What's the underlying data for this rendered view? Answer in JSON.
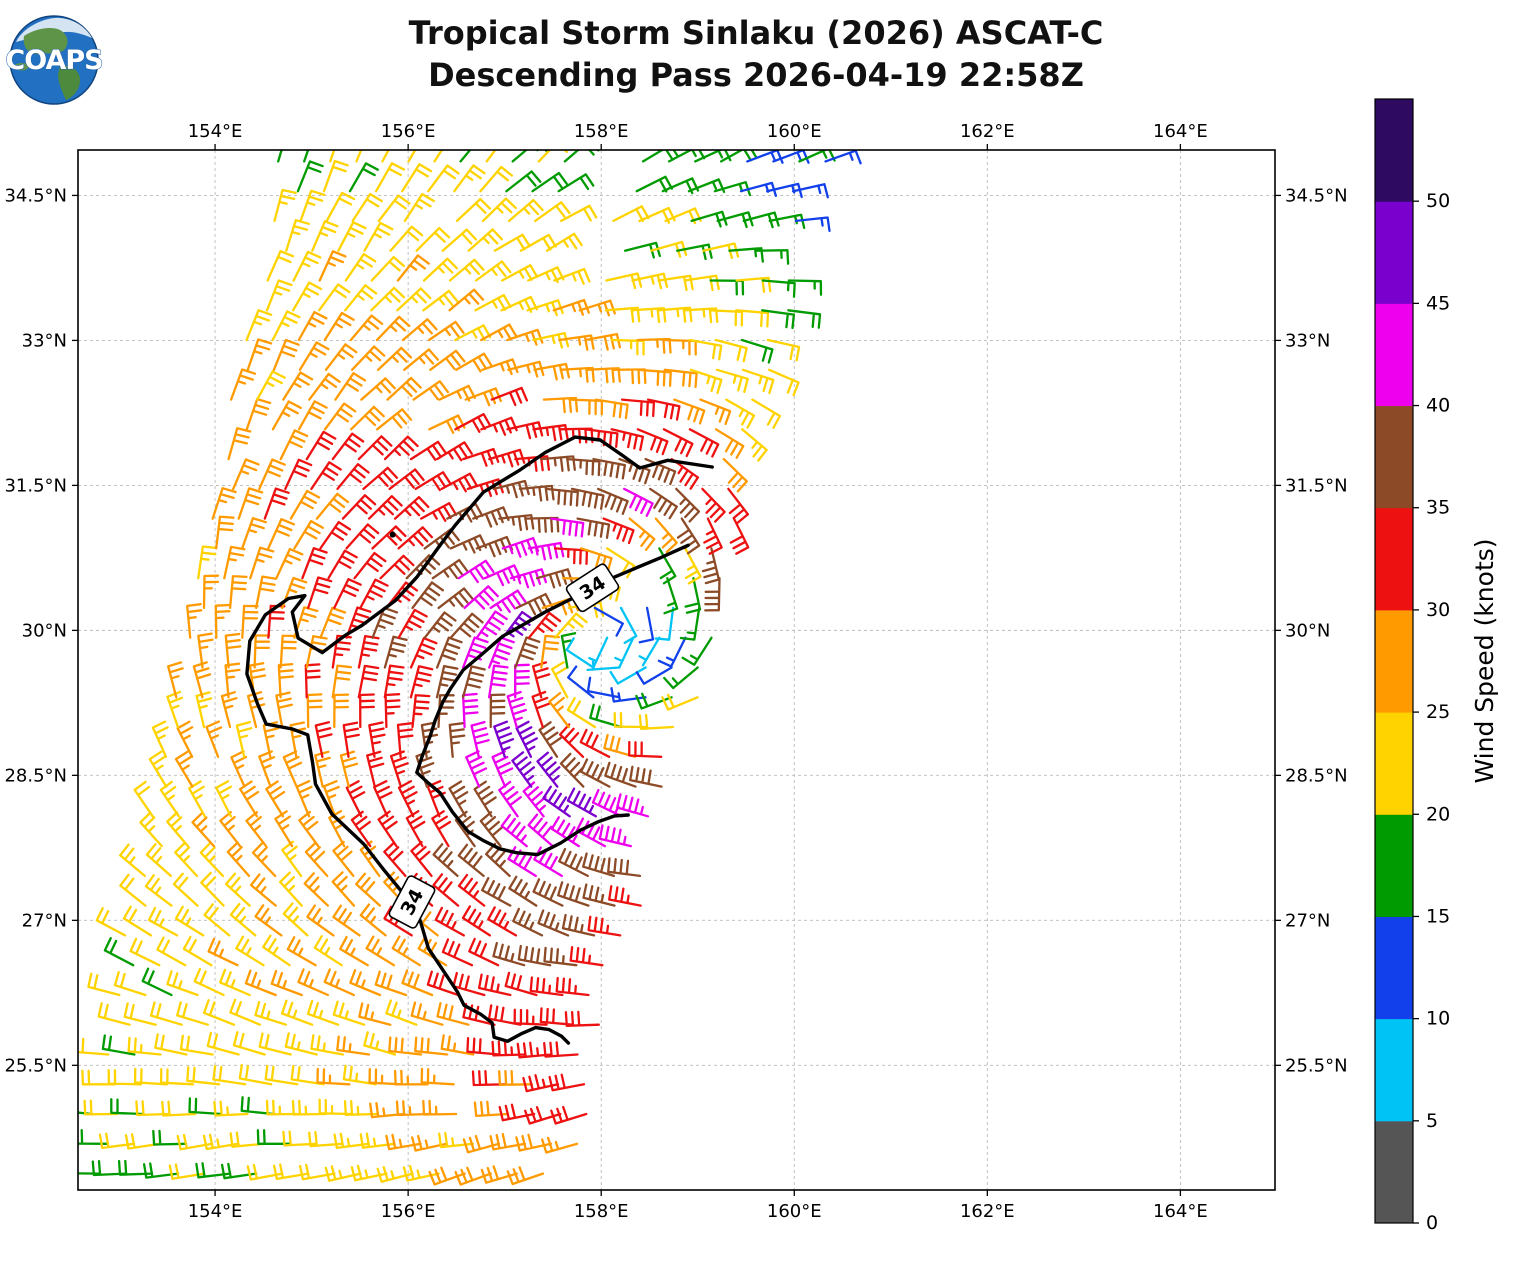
{
  "title": {
    "line1": "Tropical Storm Sinlaku (2026) ASCAT-C",
    "line2": "Descending Pass 2026-04-19 22:58Z"
  },
  "logo": {
    "text": "COAPS"
  },
  "axes": {
    "lon_range": [
      152.58,
      164.98
    ],
    "lat_range": [
      24.21,
      34.97
    ],
    "lon_ticks": [
      {
        "value": 154,
        "label": "154°E"
      },
      {
        "value": 156,
        "label": "156°E"
      },
      {
        "value": 158,
        "label": "158°E"
      },
      {
        "value": 160,
        "label": "160°E"
      },
      {
        "value": 162,
        "label": "162°E"
      },
      {
        "value": 164,
        "label": "164°E"
      }
    ],
    "lat_ticks": [
      {
        "value": 34.5,
        "label": "34.5°N"
      },
      {
        "value": 33,
        "label": "33°N"
      },
      {
        "value": 31.5,
        "label": "31.5°N"
      },
      {
        "value": 30,
        "label": "30°N"
      },
      {
        "value": 28.5,
        "label": "28.5°N"
      },
      {
        "value": 27,
        "label": "27°N"
      },
      {
        "value": 25.5,
        "label": "25.5°N"
      }
    ],
    "grid_color": "#bbbbbb"
  },
  "colorbar": {
    "label": "Wind Speed (knots)",
    "tick_values": [
      0,
      5,
      10,
      15,
      20,
      25,
      30,
      35,
      40,
      45,
      50
    ],
    "bins": [
      {
        "from": 0,
        "to": 5,
        "color": "#555555"
      },
      {
        "from": 5,
        "to": 10,
        "color": "#00C3F5"
      },
      {
        "from": 10,
        "to": 15,
        "color": "#1240EB"
      },
      {
        "from": 15,
        "to": 20,
        "color": "#009B00"
      },
      {
        "from": 20,
        "to": 25,
        "color": "#FFD300"
      },
      {
        "from": 25,
        "to": 30,
        "color": "#FF9A00"
      },
      {
        "from": 30,
        "to": 35,
        "color": "#EE1111"
      },
      {
        "from": 35,
        "to": 40,
        "color": "#8D4A26"
      },
      {
        "from": 40,
        "to": 45,
        "color": "#EE00EE"
      },
      {
        "from": 45,
        "to": 50,
        "color": "#7A00CE"
      },
      {
        "from": 50,
        "to": 55,
        "color": "#2E0A60"
      }
    ]
  },
  "chart_data": {
    "type": "wind_barb_map",
    "wind_speed_units": "knots",
    "description": "ASCAT-C scatterometer ocean surface wind barbs for Tropical Storm Sinlaku, colored by wind speed. Cyclonic (counterclockwise) circulation around a calm center near 158.1E, 29.8N with a 40-45 kt (magenta) maximum northwest of the center and a 35-40 kt (brown) band wrapping south. Black contours mark the 34-knot wind radius.",
    "wind_model": {
      "speed_center": [
        158.15,
        29.75
      ],
      "dir_center": [
        157.9,
        29.9
      ],
      "vmax_kt": 44,
      "rmax_deg": 1.2,
      "y_scale": 0.72,
      "rotation": "counterclockwise"
    },
    "swath": {
      "lon_left_at_24_8N": 152.7,
      "lon_left_slope_per_deg_lat": 0.2,
      "lon_right_at_24_5N": 157.75,
      "lon_right_slope_per_deg_lat": 0.253,
      "row_step_deg_lat": 0.308,
      "col_step_deg_lon": 0.27,
      "nadir_gap": {
        "lat_above": 33.45,
        "center_lon_at_34_6N": 157.95,
        "slope": 0.21,
        "half_width": 0.17
      },
      "data_hole": {
        "lon": 158.25,
        "lat": 30.55,
        "rx": 0.26,
        "ry": 0.32
      }
    },
    "contours": {
      "level_kt": 34,
      "label": "34",
      "color": "#000000",
      "label_positions": [
        {
          "lon": 157.91,
          "lat": 30.44,
          "rotation": -33
        },
        {
          "lon": 156.04,
          "lat": 27.19,
          "rotation": -62
        }
      ],
      "paths": [
        [
          [
            159.15,
            31.69
          ],
          [
            158.69,
            31.76
          ],
          [
            158.4,
            31.68
          ],
          [
            158.22,
            31.81
          ],
          [
            157.99,
            31.97
          ],
          [
            157.73,
            32.0
          ],
          [
            157.42,
            31.84
          ],
          [
            157.16,
            31.66
          ],
          [
            156.78,
            31.43
          ],
          [
            156.49,
            31.09
          ],
          [
            156.33,
            30.88
          ],
          [
            156.09,
            30.55
          ],
          [
            155.87,
            30.31
          ],
          [
            155.52,
            30.05
          ],
          [
            155.35,
            29.95
          ],
          [
            155.11,
            29.77
          ],
          [
            154.86,
            29.92
          ],
          [
            154.8,
            30.19
          ],
          [
            154.93,
            30.36
          ],
          [
            154.76,
            30.33
          ],
          [
            154.52,
            30.16
          ],
          [
            154.36,
            29.89
          ],
          [
            154.33,
            29.55
          ],
          [
            154.44,
            29.24
          ],
          [
            154.53,
            29.03
          ],
          [
            154.8,
            28.98
          ],
          [
            154.96,
            28.92
          ],
          [
            155.01,
            28.63
          ],
          [
            155.04,
            28.41
          ],
          [
            155.21,
            28.1
          ],
          [
            155.54,
            27.79
          ],
          [
            155.75,
            27.52
          ],
          [
            155.94,
            27.29
          ],
          [
            156.06,
            27.17
          ],
          [
            156.13,
            26.98
          ],
          [
            156.21,
            26.71
          ],
          [
            156.37,
            26.47
          ],
          [
            156.51,
            26.26
          ],
          [
            156.58,
            26.12
          ],
          [
            156.75,
            26.03
          ],
          [
            156.87,
            25.94
          ],
          [
            156.89,
            25.79
          ],
          [
            157.03,
            25.75
          ],
          [
            157.18,
            25.83
          ],
          [
            157.32,
            25.89
          ],
          [
            157.46,
            25.87
          ],
          [
            157.59,
            25.8
          ],
          [
            157.66,
            25.73
          ]
        ],
        [
          [
            158.9,
            30.88
          ],
          [
            158.61,
            30.75
          ],
          [
            158.3,
            30.62
          ],
          [
            158.11,
            30.54
          ],
          [
            157.91,
            30.43
          ],
          [
            157.66,
            30.31
          ],
          [
            157.42,
            30.19
          ],
          [
            157.16,
            30.04
          ],
          [
            156.98,
            29.94
          ],
          [
            156.75,
            29.74
          ],
          [
            156.57,
            29.59
          ],
          [
            156.44,
            29.4
          ],
          [
            156.36,
            29.26
          ],
          [
            156.28,
            29.07
          ],
          [
            156.23,
            28.91
          ],
          [
            156.15,
            28.71
          ],
          [
            156.09,
            28.53
          ],
          [
            156.21,
            28.42
          ],
          [
            156.33,
            28.32
          ],
          [
            156.46,
            28.12
          ],
          [
            156.62,
            27.92
          ],
          [
            156.77,
            27.83
          ],
          [
            156.95,
            27.74
          ],
          [
            157.12,
            27.7
          ],
          [
            157.34,
            27.68
          ],
          [
            157.46,
            27.74
          ],
          [
            157.58,
            27.8
          ],
          [
            157.78,
            27.93
          ],
          [
            157.97,
            28.02
          ],
          [
            158.14,
            28.08
          ],
          [
            158.28,
            28.09
          ]
        ]
      ]
    },
    "stray_point": {
      "lon": 155.84,
      "lat": 30.99
    }
  }
}
